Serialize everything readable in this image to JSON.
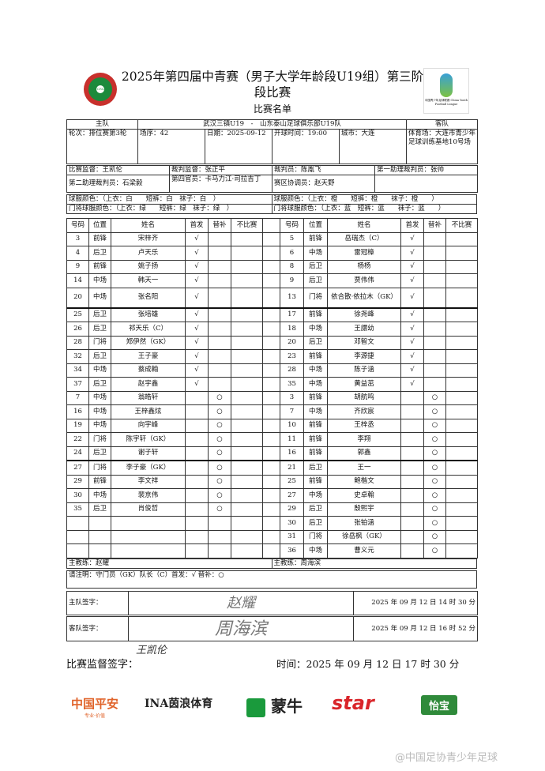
{
  "header": {
    "title": "2025年第四届中青赛（男子大学年龄段U19组）第三阶段比赛",
    "subtitle": "比赛名单",
    "logo_left": "CFA",
    "logo_right": "中国青少年足球联赛 China Youth Football League"
  },
  "match": {
    "home_label": "主队",
    "away_label": "客队",
    "teams": "武汉三镇U19　-　山东泰山足球俱乐部U19队",
    "round": "轮次：排位赛第3轮",
    "order": "场序：42",
    "date": "日期：2025-09-12",
    "kickoff": "开球时间：19:00",
    "city": "城市：大连",
    "venue": "体育场：大连市青少年足球训练基地10号场"
  },
  "officials": {
    "supervisor": "比赛监督：王凯伦",
    "ref_supervisor": "裁判监督：张正平",
    "referee": "裁判员：陈胤飞",
    "ar1": "第一助理裁判员：张帅",
    "ar2": "第二助理裁判员：石梁毅",
    "fourth": "第四官员：卡马力江·司拉吉丁",
    "coordinator": "赛区协调员：赵天野"
  },
  "kits": {
    "home": "球服颜色：（上衣：白　　短裤：白　袜子：白　）",
    "away": "球服颜色：（上衣：橙　　短裤：橙　　袜子：橙　　）",
    "home_gk": "门将球服颜色：（上衣：绿　　短裤：绿　袜子：绿　）",
    "away_gk": "门将球服颜色：（上衣：蓝　短裤：蓝　　袜子：蓝　　）"
  },
  "columns": [
    "号码",
    "位置",
    "姓名",
    "首发",
    "替补",
    "不比赛"
  ],
  "home_players": [
    [
      "3",
      "前锋",
      "宋梓齐",
      "√",
      ""
    ],
    [
      "4",
      "后卫",
      "卢天乐",
      "√",
      ""
    ],
    [
      "9",
      "前锋",
      "姚子扬",
      "√",
      ""
    ],
    [
      "14",
      "中场",
      "韩天一",
      "√",
      ""
    ],
    [
      "20",
      "中场",
      "张名阳",
      "√",
      ""
    ],
    [
      "25",
      "后卫",
      "张培雄",
      "√",
      ""
    ],
    [
      "26",
      "后卫",
      "祁天乐（C）",
      "√",
      ""
    ],
    [
      "28",
      "门将",
      "郑伊然（GK）",
      "√",
      ""
    ],
    [
      "32",
      "后卫",
      "王子豪",
      "√",
      ""
    ],
    [
      "34",
      "中场",
      "蔡成翰",
      "√",
      ""
    ],
    [
      "37",
      "后卫",
      "赵宇鑫",
      "√",
      ""
    ],
    [
      "7",
      "中场",
      "翁皓轩",
      "",
      "○"
    ],
    [
      "16",
      "中场",
      "王梓鑫炫",
      "",
      "○"
    ],
    [
      "19",
      "中场",
      "向宇峰",
      "",
      "○"
    ],
    [
      "22",
      "门将",
      "陈宇轩（GK）",
      "",
      "○"
    ],
    [
      "24",
      "后卫",
      "谢子轩",
      "",
      "○"
    ],
    [
      "27",
      "门将",
      "李子豪（GK）",
      "",
      "○"
    ],
    [
      "29",
      "前锋",
      "李文祥",
      "",
      "○"
    ],
    [
      "30",
      "中场",
      "裴京伟",
      "",
      "○"
    ],
    [
      "35",
      "后卫",
      "肖俊哲",
      "",
      "○"
    ]
  ],
  "away_players": [
    [
      "5",
      "前锋",
      "岳瑞杰（C）",
      "√",
      ""
    ],
    [
      "6",
      "中场",
      "雷冠樟",
      "√",
      ""
    ],
    [
      "8",
      "后卫",
      "杨杨",
      "√",
      ""
    ],
    [
      "9",
      "后卫",
      "贾伟伟",
      "√",
      ""
    ],
    [
      "13",
      "门将",
      "依合散·依拉木（GK）",
      "√",
      ""
    ],
    [
      "17",
      "前锋",
      "徐尧峰",
      "√",
      ""
    ],
    [
      "18",
      "中场",
      "王譞幼",
      "√",
      ""
    ],
    [
      "20",
      "后卫",
      "邓智文",
      "√",
      ""
    ],
    [
      "23",
      "前锋",
      "李源捷",
      "√",
      ""
    ],
    [
      "28",
      "中场",
      "陈子涵",
      "√",
      ""
    ],
    [
      "35",
      "中场",
      "黄益茁",
      "√",
      ""
    ],
    [
      "3",
      "前锋",
      "胡航鸣",
      "",
      "○"
    ],
    [
      "7",
      "中场",
      "齐欣宸",
      "",
      "○"
    ],
    [
      "10",
      "前锋",
      "王梓丞",
      "",
      "○"
    ],
    [
      "11",
      "前锋",
      "李翔",
      "",
      "○"
    ],
    [
      "16",
      "前锋",
      "郭鑫",
      "",
      "○"
    ],
    [
      "21",
      "后卫",
      "王一",
      "",
      "○"
    ],
    [
      "25",
      "前锋",
      "鲍楷文",
      "",
      "○"
    ],
    [
      "27",
      "中场",
      "史卓翰",
      "",
      "○"
    ],
    [
      "29",
      "后卫",
      "殷熙宇",
      "",
      "○"
    ],
    [
      "30",
      "后卫",
      "张铂涵",
      "",
      "○"
    ],
    [
      "31",
      "门将",
      "徐岳枫（GK）",
      "",
      "○"
    ],
    [
      "36",
      "中场",
      "曹义元",
      "",
      "○"
    ]
  ],
  "coaches": {
    "home": "主教练：赵耀",
    "away": "主教练：周海滨"
  },
  "note": "请注明：守门员（GK）队长（C）首发：√ 替补：○",
  "signatures": {
    "home_label": "主队签字：",
    "home_sig": "赵耀",
    "home_time": "2025 年 09 月 12 日 14 时 30 分",
    "away_label": "客队签字：",
    "away_sig": "周海滨",
    "away_time": "2025 年 09 月 12 日 16 时 52 分",
    "supervisor_label": "比赛监督签字：",
    "supervisor_sig": "王凯伦",
    "supervisor_time": "时间：2025 年 09 月 12 日 17 时 30 分"
  },
  "sponsors": [
    {
      "name": "中国平安",
      "tag": "专业·价值",
      "color": "#e0632a"
    },
    {
      "name": "INA茵浪体育",
      "color": "#222222"
    },
    {
      "name": "蒙牛",
      "color": "#1a9a3c"
    },
    {
      "name": "star",
      "color": "#d9252a"
    },
    {
      "name": "怡宝",
      "color": "#2f8a3a"
    }
  ],
  "watermark": "@中国足协青少年足球"
}
